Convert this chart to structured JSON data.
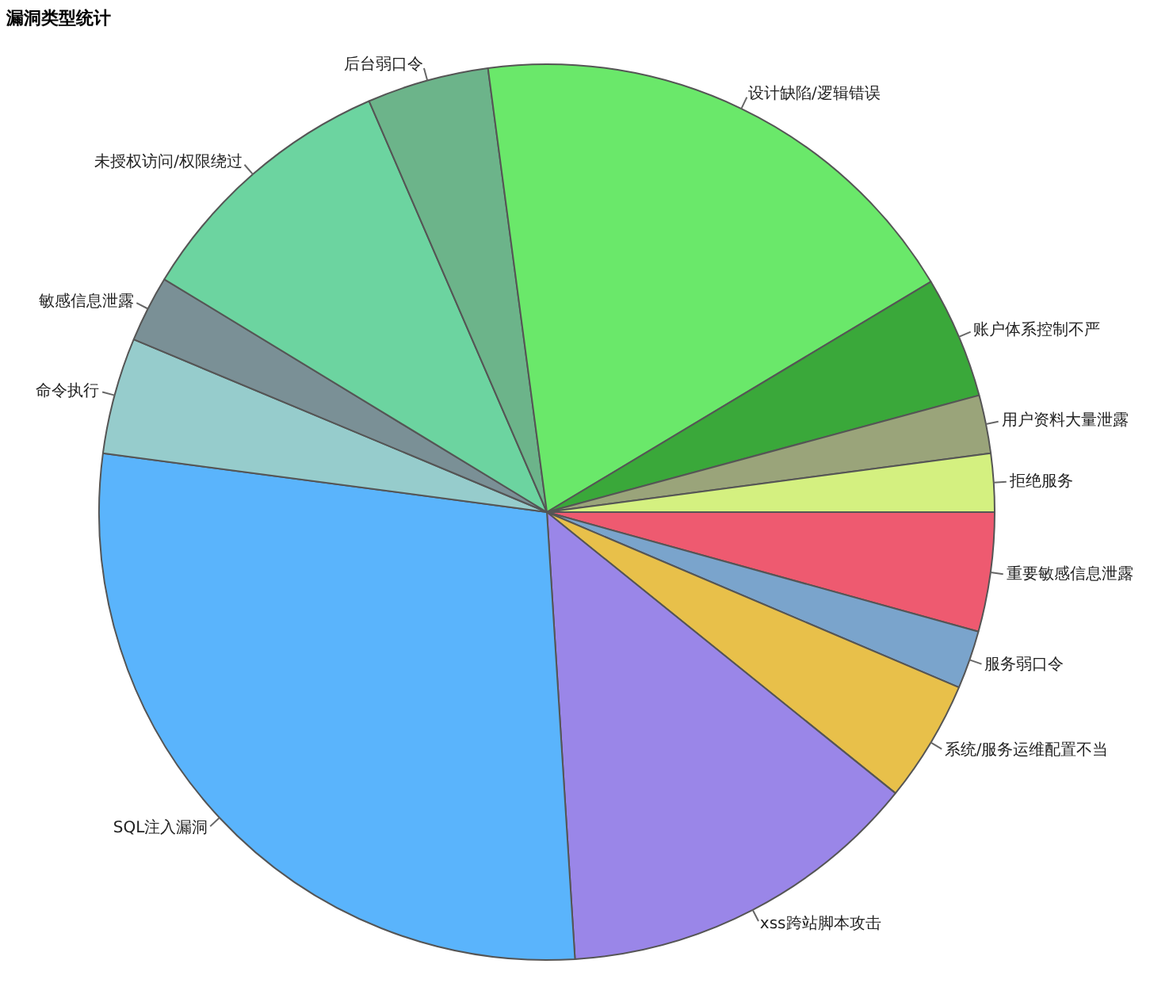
{
  "chart_data": {
    "type": "pie",
    "title": "漏洞类型统计",
    "categories": [
      "重要敏感信息泄露",
      "服务弱口令",
      "系统/服务运维配置不当",
      "xss跨站脚本攻击",
      "SQL注入漏洞",
      "命令执行",
      "敏感信息泄露",
      "未授权访问/权限绕过",
      "后台弱口令",
      "设计缺陷/逻辑错误",
      "账户体系控制不严",
      "用户资料大量泄露",
      "拒绝服务"
    ],
    "values": [
      4.3,
      2.1,
      4.4,
      13.2,
      28.1,
      4.2,
      2.4,
      9.8,
      4.4,
      18.5,
      4.4,
      2.1,
      2.1
    ],
    "colors": [
      "#ee5a70",
      "#7aa4cc",
      "#e8c04a",
      "#9a86e8",
      "#5ab4fc",
      "#96cccc",
      "#7a9096",
      "#6cd4a0",
      "#6cb48a",
      "#6ae86a",
      "#3aa83a",
      "#9aa47a",
      "#d4f080"
    ],
    "legend": false
  }
}
